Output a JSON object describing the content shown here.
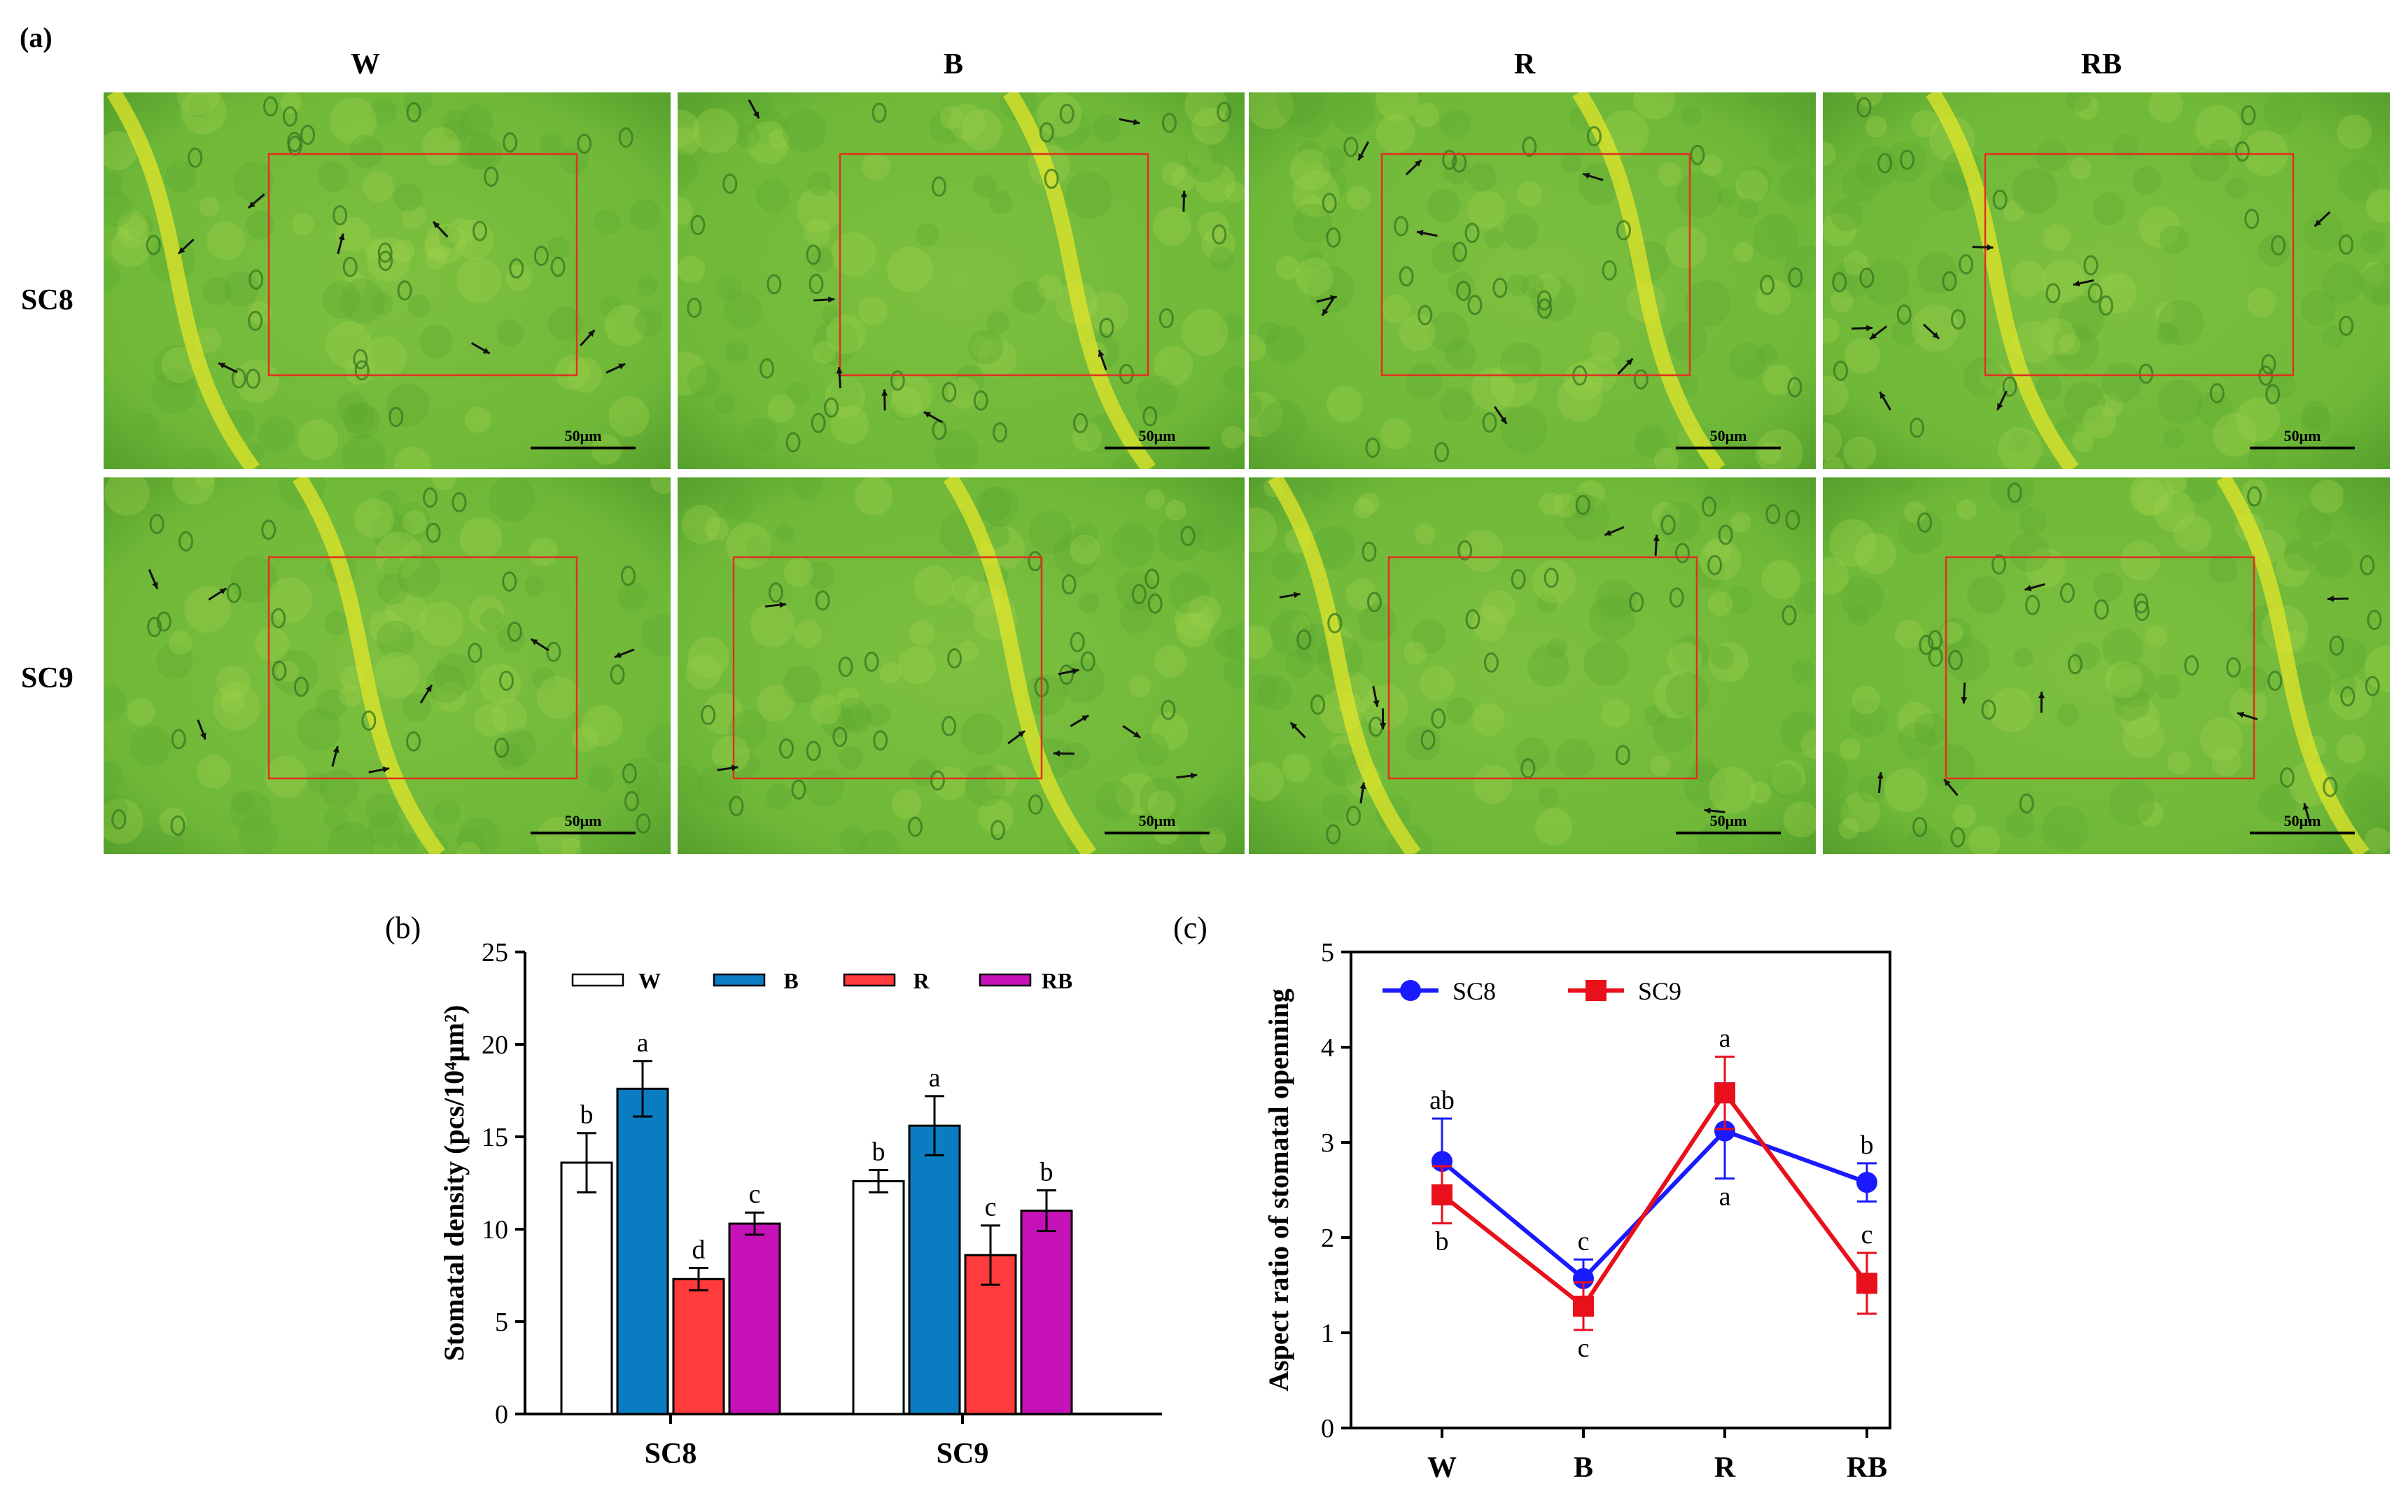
{
  "panel_a": {
    "label": "(a)",
    "columns": [
      "W",
      "B",
      "R",
      "RB"
    ],
    "rows": [
      "SC8",
      "SC9"
    ],
    "scale_bar_label": "50μm",
    "colors": {
      "leaf_base": "#8cc63f",
      "leaf_dark": "#4f9a2a",
      "vein": "#e8e82a",
      "roi": "#e03020",
      "arrow": "#111111"
    }
  },
  "panel_b": {
    "label": "(b)",
    "chart_data": {
      "type": "bar",
      "title": "",
      "xlabel": "",
      "ylabel": "Stomatal density (pcs/10⁴μm²)",
      "ylim": [
        0,
        25
      ],
      "yticks": [
        "0",
        "5",
        "10",
        "15",
        "20",
        "25"
      ],
      "categories": [
        "SC8",
        "SC9"
      ],
      "series": [
        {
          "name": "W",
          "color": "#ffffff",
          "values": [
            13.6,
            12.6
          ],
          "errors": [
            1.6,
            0.6
          ],
          "letters": [
            "b",
            "b"
          ]
        },
        {
          "name": "B",
          "color": "#0a7dc2",
          "values": [
            17.6,
            15.6
          ],
          "errors": [
            1.5,
            1.6
          ],
          "letters": [
            "a",
            "a"
          ]
        },
        {
          "name": "R",
          "color": "#ff3b3b",
          "values": [
            7.3,
            8.6
          ],
          "errors": [
            0.6,
            1.6
          ],
          "letters": [
            "d",
            "c"
          ]
        },
        {
          "name": "RB",
          "color": "#c711b8",
          "values": [
            10.3,
            11.0
          ],
          "errors": [
            0.6,
            1.1
          ],
          "letters": [
            "c",
            "b"
          ]
        }
      ],
      "legend_placement": "top"
    }
  },
  "panel_c": {
    "label": "(c)",
    "chart_data": {
      "type": "line",
      "title": "",
      "xlabel": "",
      "ylabel": "Aspect ratio of stomatal openning",
      "ylim": [
        0,
        5
      ],
      "yticks": [
        "0",
        "1",
        "2",
        "3",
        "4",
        "5"
      ],
      "categories": [
        "W",
        "B",
        "R",
        "RB"
      ],
      "series": [
        {
          "name": "SC8",
          "color": "#1a1aff",
          "marker": "circle",
          "values": [
            2.8,
            1.57,
            3.12,
            2.58
          ],
          "errors": [
            0.45,
            0.2,
            0.5,
            0.2
          ],
          "letters": [
            "ab",
            "c",
            "a",
            "b"
          ],
          "letter_side": [
            "above",
            "above",
            "below",
            "above"
          ]
        },
        {
          "name": "SC9",
          "color": "#e8101a",
          "marker": "square",
          "values": [
            2.45,
            1.28,
            3.52,
            1.52
          ],
          "errors": [
            0.3,
            0.25,
            0.38,
            0.32
          ],
          "letters": [
            "b",
            "c",
            "a",
            "c"
          ],
          "letter_side": [
            "below",
            "below",
            "above",
            "above"
          ]
        }
      ],
      "legend_placement": "top-left"
    }
  }
}
